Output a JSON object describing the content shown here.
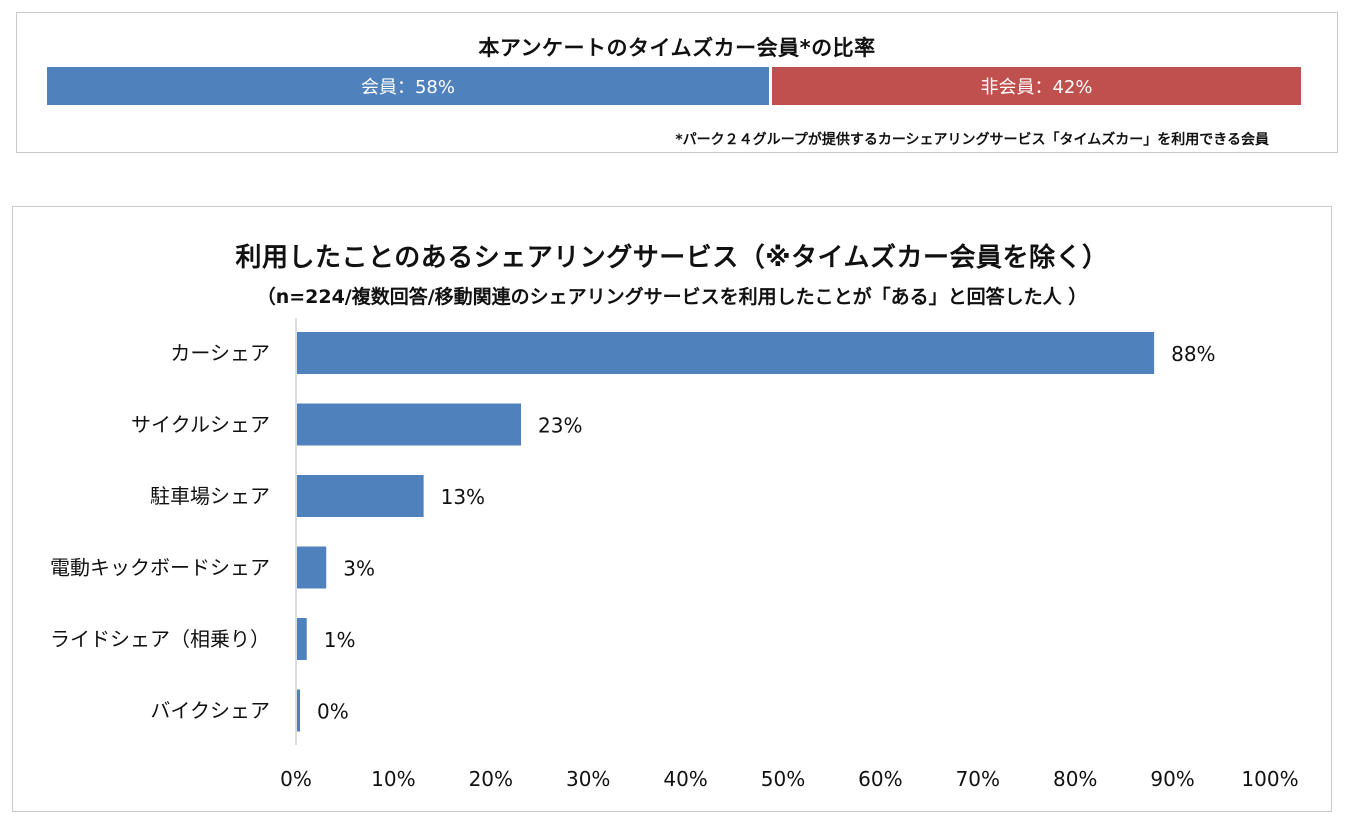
{
  "colors": {
    "member": "#4f81bd",
    "nonmember": "#c0504d",
    "bar": "#4f81bd",
    "axis": "#d0d0d0"
  },
  "membership": {
    "title": "本アンケートのタイムズカー会員*の比率",
    "member_label": "会員：58%",
    "member_pct": 58,
    "nonmember_label": "非会員：42%",
    "nonmember_pct": 42,
    "footnote": "*パーク２４グループが提供するカーシェアリングサービス「タイムズカー」を利用できる会員"
  },
  "chart_data": {
    "type": "bar",
    "orientation": "horizontal",
    "title": "利用したことのあるシェアリングサービス（※タイムズカー会員を除く）",
    "subtitle": "（n=224/複数回答/移動関連のシェアリングサービスを利用したことが「ある」と回答した人 ）",
    "categories": [
      "カーシェア",
      "サイクルシェア",
      "駐車場シェア",
      "電動キックボードシェア",
      "ライドシェア（相乗り）",
      "バイクシェア"
    ],
    "values": [
      88,
      23,
      13,
      3,
      1,
      0
    ],
    "value_labels": [
      "88%",
      "23%",
      "13%",
      "3%",
      "1%",
      "0%"
    ],
    "xlim": [
      0,
      100
    ],
    "ticks": [
      0,
      10,
      20,
      30,
      40,
      50,
      60,
      70,
      80,
      90,
      100
    ],
    "tick_labels": [
      "0%",
      "10%",
      "20%",
      "30%",
      "40%",
      "50%",
      "60%",
      "70%",
      "80%",
      "90%",
      "100%"
    ],
    "grid": false
  }
}
